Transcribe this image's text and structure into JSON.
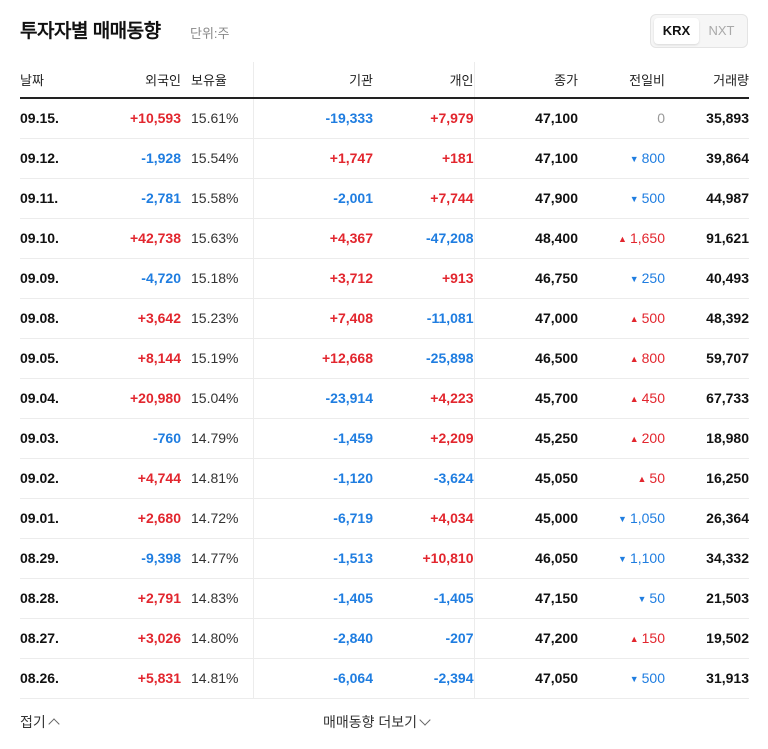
{
  "header": {
    "title": "투자자별 매매동향",
    "unit": "단위:주",
    "exchanges": [
      {
        "label": "KRX",
        "active": true
      },
      {
        "label": "NXT",
        "active": false
      }
    ]
  },
  "columns": {
    "date": "날짜",
    "foreign": "외국인",
    "holding": "보유율",
    "institution": "기관",
    "individual": "개인",
    "close": "종가",
    "change": "전일비",
    "volume": "거래량"
  },
  "rows": [
    {
      "date": "09.15.",
      "foreign": "+10,593",
      "holding": "15.61%",
      "institution": "-19,333",
      "individual": "+7,979",
      "close": "47,100",
      "change": "0",
      "change_dir": "flat",
      "volume": "35,893"
    },
    {
      "date": "09.12.",
      "foreign": "-1,928",
      "holding": "15.54%",
      "institution": "+1,747",
      "individual": "+181",
      "close": "47,100",
      "change": "800",
      "change_dir": "down",
      "volume": "39,864"
    },
    {
      "date": "09.11.",
      "foreign": "-2,781",
      "holding": "15.58%",
      "institution": "-2,001",
      "individual": "+7,744",
      "close": "47,900",
      "change": "500",
      "change_dir": "down",
      "volume": "44,987"
    },
    {
      "date": "09.10.",
      "foreign": "+42,738",
      "holding": "15.63%",
      "institution": "+4,367",
      "individual": "-47,208",
      "close": "48,400",
      "change": "1,650",
      "change_dir": "up",
      "volume": "91,621"
    },
    {
      "date": "09.09.",
      "foreign": "-4,720",
      "holding": "15.18%",
      "institution": "+3,712",
      "individual": "+913",
      "close": "46,750",
      "change": "250",
      "change_dir": "down",
      "volume": "40,493"
    },
    {
      "date": "09.08.",
      "foreign": "+3,642",
      "holding": "15.23%",
      "institution": "+7,408",
      "individual": "-11,081",
      "close": "47,000",
      "change": "500",
      "change_dir": "up",
      "volume": "48,392"
    },
    {
      "date": "09.05.",
      "foreign": "+8,144",
      "holding": "15.19%",
      "institution": "+12,668",
      "individual": "-25,898",
      "close": "46,500",
      "change": "800",
      "change_dir": "up",
      "volume": "59,707"
    },
    {
      "date": "09.04.",
      "foreign": "+20,980",
      "holding": "15.04%",
      "institution": "-23,914",
      "individual": "+4,223",
      "close": "45,700",
      "change": "450",
      "change_dir": "up",
      "volume": "67,733"
    },
    {
      "date": "09.03.",
      "foreign": "-760",
      "holding": "14.79%",
      "institution": "-1,459",
      "individual": "+2,209",
      "close": "45,250",
      "change": "200",
      "change_dir": "up",
      "volume": "18,980"
    },
    {
      "date": "09.02.",
      "foreign": "+4,744",
      "holding": "14.81%",
      "institution": "-1,120",
      "individual": "-3,624",
      "close": "45,050",
      "change": "50",
      "change_dir": "up",
      "volume": "16,250"
    },
    {
      "date": "09.01.",
      "foreign": "+2,680",
      "holding": "14.72%",
      "institution": "-6,719",
      "individual": "+4,034",
      "close": "45,000",
      "change": "1,050",
      "change_dir": "down",
      "volume": "26,364"
    },
    {
      "date": "08.29.",
      "foreign": "-9,398",
      "holding": "14.77%",
      "institution": "-1,513",
      "individual": "+10,810",
      "close": "46,050",
      "change": "1,100",
      "change_dir": "down",
      "volume": "34,332"
    },
    {
      "date": "08.28.",
      "foreign": "+2,791",
      "holding": "14.83%",
      "institution": "-1,405",
      "individual": "-1,405",
      "close": "47,150",
      "change": "50",
      "change_dir": "down",
      "volume": "21,503"
    },
    {
      "date": "08.27.",
      "foreign": "+3,026",
      "holding": "14.80%",
      "institution": "-2,840",
      "individual": "-207",
      "close": "47,200",
      "change": "150",
      "change_dir": "up",
      "volume": "19,502"
    },
    {
      "date": "08.26.",
      "foreign": "+5,831",
      "holding": "14.81%",
      "institution": "-6,064",
      "individual": "-2,394",
      "close": "47,050",
      "change": "500",
      "change_dir": "down",
      "volume": "31,913"
    }
  ],
  "footer": {
    "fold_label": "접기",
    "more_label": "매매동향 더보기"
  },
  "colors": {
    "positive": "#e2262e",
    "negative": "#1f7de0",
    "flat": "#999999"
  }
}
